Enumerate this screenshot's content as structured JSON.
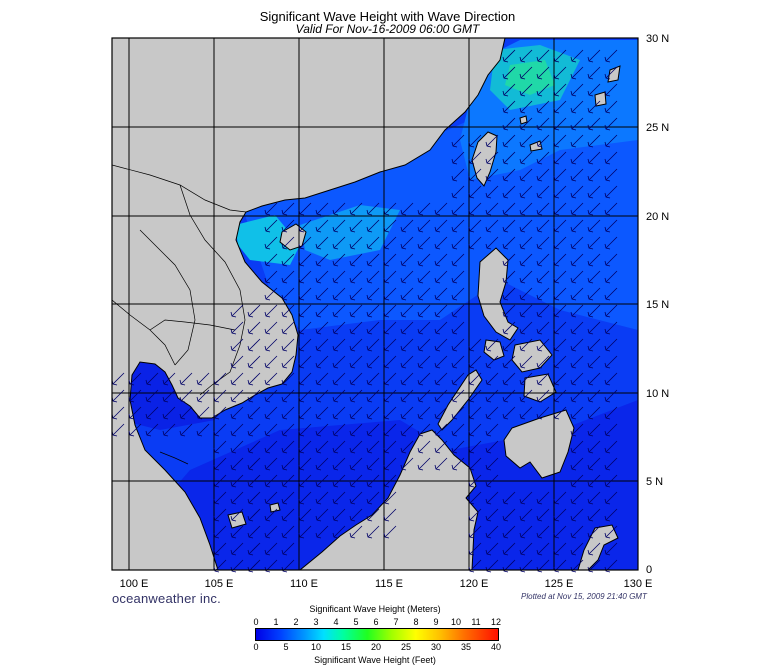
{
  "map": {
    "title": "Significant Wave Height with Wave Direction",
    "subtitle": "Valid For Nov-16-2009 06:00 GMT",
    "lon_labels": [
      "100 E",
      "105 E",
      "110 E",
      "115 E",
      "120 E",
      "125 E",
      "130 E"
    ],
    "lat_labels": [
      "30 N",
      "25 N",
      "20 N",
      "15 N",
      "10 N",
      "5 N",
      "0"
    ],
    "lon_range": [
      99,
      130
    ],
    "lat_range": [
      0,
      30
    ],
    "wave_direction": "from northeast toward southwest",
    "colors": {
      "land": "#c8c8c8",
      "ocean_low": "#0a22ee",
      "ocean_mid": "#0060ff",
      "ocean_high": "#00d0c0",
      "grid": "#000000",
      "arrows": "#000066"
    }
  },
  "footer": {
    "brand": "oceanweather inc.",
    "plotted": "Plotted at Nov 15, 2009 21:40 GMT"
  },
  "legend": {
    "meters_title": "Significant Wave Height (Meters)",
    "feet_title": "Significant Wave Height (Feet)",
    "meters_ticks": [
      "0",
      "1",
      "2",
      "3",
      "4",
      "5",
      "6",
      "7",
      "8",
      "9",
      "10",
      "11",
      "12"
    ],
    "feet_ticks": [
      "0",
      "5",
      "10",
      "15",
      "20",
      "25",
      "30",
      "35",
      "40"
    ]
  }
}
